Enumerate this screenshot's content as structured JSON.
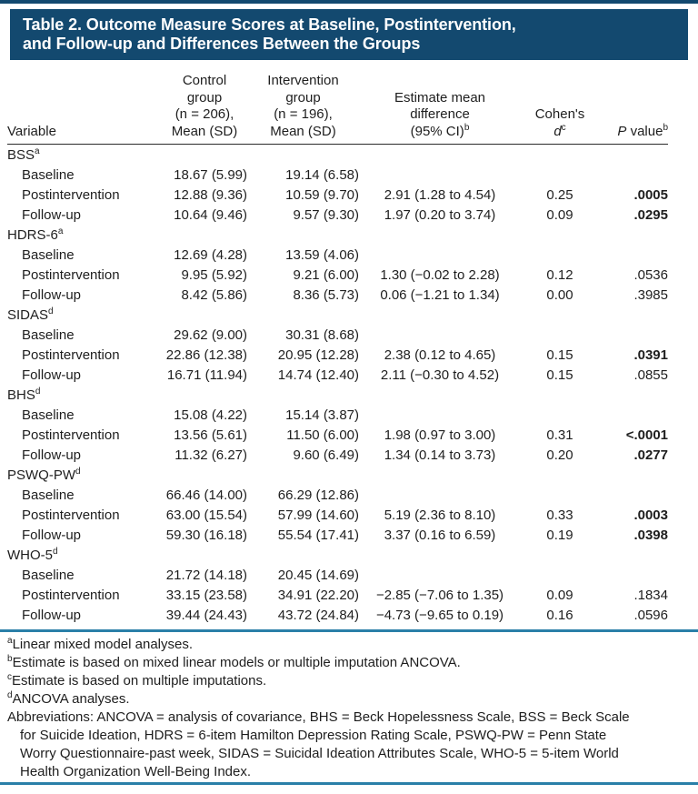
{
  "colors": {
    "title_bar_bg": "#13496F",
    "title_text": "#FFFFFF",
    "accent_rule": "#2A7FA8",
    "header_rule": "#2B2B2B",
    "text": "#1E1E1E"
  },
  "title": "Table 2. Outcome Measure Scores at Baseline, Postintervention,\nand Follow-up and Differences Between the Groups",
  "columns": {
    "variable": "Variable",
    "control": "Control\ngroup\n(n = 206),\nMean (SD)",
    "intervention": "Intervention\ngroup\n(n = 196),\nMean (SD)",
    "estimate": "Estimate mean\ndifference\n(95% CI)",
    "estimate_sup": "b",
    "cohens_label": "Cohen's",
    "cohens_d": "d",
    "cohens_sup": "c",
    "p_italic": "P",
    "p_rest": " value",
    "p_sup": "b"
  },
  "sections": [
    {
      "name": "BSS",
      "sup": "a",
      "rows": [
        {
          "label": "Baseline",
          "control": "18.67 (5.99)",
          "intervention": "19.14 (6.58)",
          "estimate": "",
          "cohens": "",
          "p": "",
          "p_bold": false
        },
        {
          "label": "Postintervention",
          "control": "12.88 (9.36)",
          "intervention": "10.59 (9.70)",
          "estimate": "2.91 (1.28 to 4.54)",
          "cohens": "0.25",
          "p": ".0005",
          "p_bold": true
        },
        {
          "label": "Follow-up",
          "control": "10.64 (9.46)",
          "intervention": "9.57 (9.30)",
          "estimate": "1.97 (0.20 to 3.74)",
          "cohens": "0.09",
          "p": ".0295",
          "p_bold": true
        }
      ]
    },
    {
      "name": "HDRS-6",
      "sup": "a",
      "rows": [
        {
          "label": "Baseline",
          "control": "12.69 (4.28)",
          "intervention": "13.59 (4.06)",
          "estimate": "",
          "cohens": "",
          "p": "",
          "p_bold": false
        },
        {
          "label": "Postintervention",
          "control": "9.95 (5.92)",
          "intervention": "9.21 (6.00)",
          "estimate": "1.30 (−0.02 to 2.28)",
          "cohens": "0.12",
          "p": ".0536",
          "p_bold": false
        },
        {
          "label": "Follow-up",
          "control": "8.42 (5.86)",
          "intervention": "8.36 (5.73)",
          "estimate": "0.06 (−1.21 to 1.34)",
          "cohens": "0.00",
          "p": ".3985",
          "p_bold": false
        }
      ]
    },
    {
      "name": "SIDAS",
      "sup": "d",
      "rows": [
        {
          "label": "Baseline",
          "control": "29.62 (9.00)",
          "intervention": "30.31 (8.68)",
          "estimate": "",
          "cohens": "",
          "p": "",
          "p_bold": false
        },
        {
          "label": "Postintervention",
          "control": "22.86 (12.38)",
          "intervention": "20.95 (12.28)",
          "estimate": "2.38 (0.12 to 4.65)",
          "cohens": "0.15",
          "p": ".0391",
          "p_bold": true
        },
        {
          "label": "Follow-up",
          "control": "16.71 (11.94)",
          "intervention": "14.74 (12.40)",
          "estimate": "2.11 (−0.30 to 4.52)",
          "cohens": "0.15",
          "p": ".0855",
          "p_bold": false
        }
      ]
    },
    {
      "name": "BHS",
      "sup": "d",
      "rows": [
        {
          "label": "Baseline",
          "control": "15.08 (4.22)",
          "intervention": "15.14 (3.87)",
          "estimate": "",
          "cohens": "",
          "p": "",
          "p_bold": false
        },
        {
          "label": "Postintervention",
          "control": "13.56 (5.61)",
          "intervention": "11.50 (6.00)",
          "estimate": "1.98 (0.97 to 3.00)",
          "cohens": "0.31",
          "p": "<.0001",
          "p_bold": true
        },
        {
          "label": "Follow-up",
          "control": "11.32 (6.27)",
          "intervention": "9.60 (6.49)",
          "estimate": "1.34 (0.14 to 3.73)",
          "cohens": "0.20",
          "p": ".0277",
          "p_bold": true
        }
      ]
    },
    {
      "name": "PSWQ-PW",
      "sup": "d",
      "rows": [
        {
          "label": "Baseline",
          "control": "66.46 (14.00)",
          "intervention": "66.29 (12.86)",
          "estimate": "",
          "cohens": "",
          "p": "",
          "p_bold": false
        },
        {
          "label": "Postintervention",
          "control": "63.00 (15.54)",
          "intervention": "57.99 (14.60)",
          "estimate": "5.19 (2.36 to 8.10)",
          "cohens": "0.33",
          "p": ".0003",
          "p_bold": true
        },
        {
          "label": "Follow-up",
          "control": "59.30 (16.18)",
          "intervention": "55.54 (17.41)",
          "estimate": "3.37 (0.16 to 6.59)",
          "cohens": "0.19",
          "p": ".0398",
          "p_bold": true
        }
      ]
    },
    {
      "name": "WHO-5",
      "sup": "d",
      "rows": [
        {
          "label": "Baseline",
          "control": "21.72 (14.18)",
          "intervention": "20.45 (14.69)",
          "estimate": "",
          "cohens": "",
          "p": "",
          "p_bold": false
        },
        {
          "label": "Postintervention",
          "control": "33.15 (23.58)",
          "intervention": "34.91 (22.20)",
          "estimate": "−2.85 (−7.06 to 1.35)",
          "cohens": "0.09",
          "p": ".1834",
          "p_bold": false
        },
        {
          "label": "Follow-up",
          "control": "39.44 (24.43)",
          "intervention": "43.72 (24.84)",
          "estimate": "−4.73 (−9.65 to 0.19)",
          "cohens": "0.16",
          "p": ".0596",
          "p_bold": false
        }
      ]
    }
  ],
  "footnotes": [
    {
      "sup": "a",
      "text": "Linear mixed model analyses."
    },
    {
      "sup": "b",
      "text": "Estimate is based on mixed linear models or multiple imputation ANCOVA."
    },
    {
      "sup": "c",
      "text": "Estimate is based on multiple imputations."
    },
    {
      "sup": "d",
      "text": "ANCOVA analyses."
    }
  ],
  "abbreviations": "Abbreviations: ANCOVA = analysis of covariance, BHS = Beck Hopelessness Scale, BSS = Beck Scale\nfor Suicide Ideation, HDRS = 6-item Hamilton Depression Rating Scale, PSWQ-PW = Penn State\nWorry Questionnaire-past week, SIDAS = Suicidal Ideation Attributes Scale, WHO-5 = 5-item World\nHealth Organization Well-Being Index."
}
